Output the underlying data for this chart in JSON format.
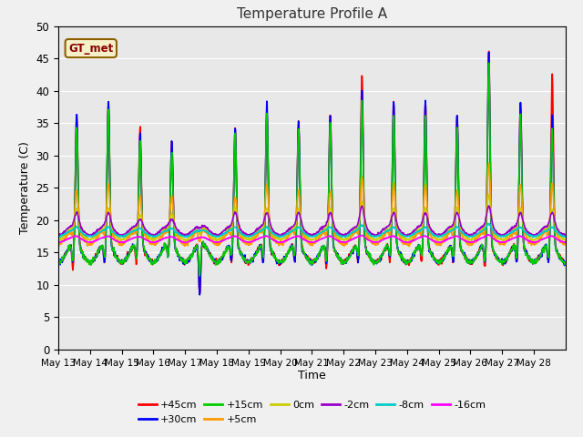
{
  "title": "Temperature Profile A",
  "xlabel": "Time",
  "ylabel": "Temperature (C)",
  "ylim": [
    0,
    50
  ],
  "annotation_text": "GT_met",
  "series": [
    {
      "label": "+45cm",
      "color": "#ff0000",
      "lw": 1.2
    },
    {
      "label": "+30cm",
      "color": "#0000ff",
      "lw": 1.2
    },
    {
      "label": "+15cm",
      "color": "#00cc00",
      "lw": 1.2
    },
    {
      "label": "+5cm",
      "color": "#ff9900",
      "lw": 1.2
    },
    {
      "label": "0cm",
      "color": "#cccc00",
      "lw": 1.2
    },
    {
      "label": "-2cm",
      "color": "#9900cc",
      "lw": 1.2
    },
    {
      "label": "-8cm",
      "color": "#00cccc",
      "lw": 1.2
    },
    {
      "label": "-16cm",
      "color": "#ff00ff",
      "lw": 1.2
    }
  ],
  "xtick_labels": [
    "May 13",
    "May 14",
    "May 15",
    "May 16",
    "May 17",
    "May 18",
    "May 19",
    "May 20",
    "May 21",
    "May 22",
    "May 23",
    "May 24",
    "May 25",
    "May 26",
    "May 27",
    "May 28"
  ],
  "bg_color": "#e8e8e8",
  "grid_color": "#ffffff",
  "figsize": [
    6.4,
    4.8
  ],
  "dpi": 100
}
